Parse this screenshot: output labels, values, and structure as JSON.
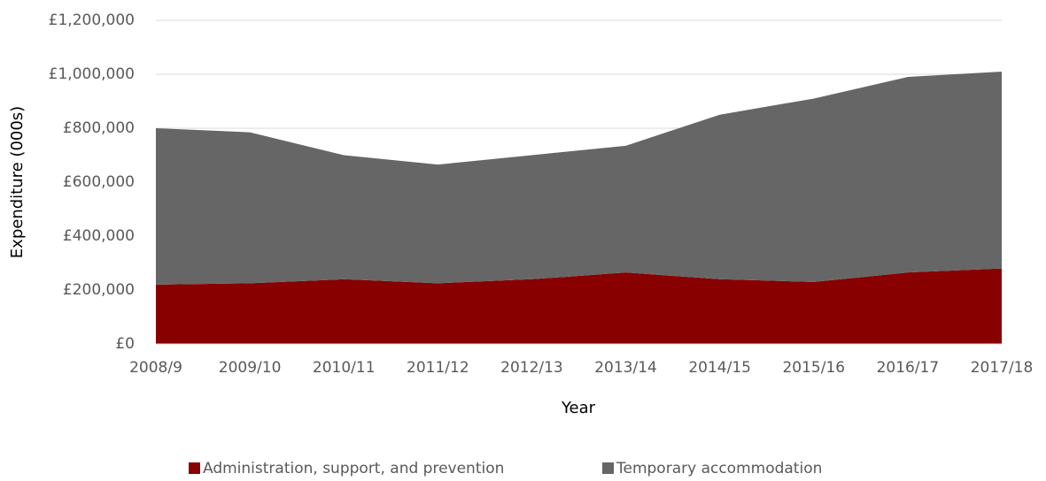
{
  "chart_data": {
    "type": "stacked_area",
    "categories": [
      "2008/9",
      "2009/10",
      "2010/11",
      "2011/12",
      "2012/13",
      "2013/14",
      "2014/15",
      "2015/16",
      "2016/17",
      "2017/18"
    ],
    "series": [
      {
        "name": "Administration, support, and prevention",
        "color": "#880000",
        "values": [
          220000,
          225000,
          240000,
          225000,
          240000,
          265000,
          240000,
          230000,
          265000,
          280000
        ]
      },
      {
        "name": "Temporary accommodation",
        "color": "#666666",
        "values": [
          580000,
          560000,
          460000,
          440000,
          460000,
          470000,
          610000,
          680000,
          725000,
          730000
        ]
      }
    ],
    "ylabel": "Expenditure (000s)",
    "xlabel": "Year",
    "ylim": [
      0,
      1200000
    ],
    "yticks": [
      {
        "value": 0,
        "label": "£0"
      },
      {
        "value": 200000,
        "label": "£200,000"
      },
      {
        "value": 400000,
        "label": "£400,000"
      },
      {
        "value": 600000,
        "label": "£600,000"
      },
      {
        "value": 800000,
        "label": "£800,000"
      },
      {
        "value": 1000000,
        "label": "£1,000,000"
      },
      {
        "value": 1200000,
        "label": "£1,200,000"
      }
    ],
    "grid": true,
    "legend": "bottom"
  }
}
